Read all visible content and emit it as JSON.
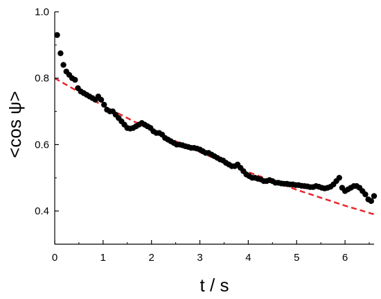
{
  "chart_data": {
    "type": "scatter",
    "title": "",
    "xlabel": "t / s",
    "ylabel": "<cos ψ>",
    "xlim": [
      0,
      6.6
    ],
    "ylim": [
      0.3,
      1.0
    ],
    "x_ticks": [
      0,
      1,
      2,
      3,
      4,
      5,
      6
    ],
    "x_tick_labels": [
      "0",
      "1",
      "2",
      "3",
      "4",
      "5",
      "6"
    ],
    "y_ticks": [
      0.4,
      0.6,
      0.8,
      1.0
    ],
    "y_tick_labels": [
      "0.4",
      "0.6",
      "0.8",
      "1.0"
    ],
    "grid": false,
    "legend": "none",
    "colors": {
      "points": "#000000",
      "fit": "#e8262b"
    },
    "series": [
      {
        "kind": "points",
        "x": [
          0.05,
          0.12,
          0.18,
          0.24,
          0.3,
          0.36,
          0.42,
          0.48,
          0.54,
          0.6,
          0.66,
          0.72,
          0.78,
          0.84,
          0.9,
          0.96,
          1.02,
          1.08,
          1.14,
          1.2,
          1.26,
          1.32,
          1.38,
          1.44,
          1.5,
          1.56,
          1.62,
          1.68,
          1.74,
          1.8,
          1.86,
          1.92,
          1.98,
          2.04,
          2.1,
          2.16,
          2.22,
          2.28,
          2.34,
          2.4,
          2.46,
          2.52,
          2.58,
          2.64,
          2.7,
          2.76,
          2.82,
          2.88,
          2.94,
          3.0,
          3.06,
          3.12,
          3.18,
          3.24,
          3.3,
          3.36,
          3.42,
          3.48,
          3.54,
          3.6,
          3.66,
          3.72,
          3.78,
          3.84,
          3.9,
          3.96,
          4.02,
          4.08,
          4.14,
          4.2,
          4.26,
          4.32,
          4.38,
          4.44,
          4.5,
          4.56,
          4.62,
          4.68,
          4.74,
          4.8,
          4.86,
          4.92,
          4.98,
          5.04,
          5.1,
          5.16,
          5.22,
          5.28,
          5.34,
          5.4,
          5.46,
          5.52,
          5.58,
          5.64,
          5.7,
          5.76,
          5.82,
          5.88,
          5.94,
          6.0,
          6.06,
          6.12,
          6.18,
          6.24,
          6.3,
          6.36,
          6.42,
          6.48,
          6.54,
          6.6
        ],
        "y": [
          0.93,
          0.875,
          0.84,
          0.82,
          0.81,
          0.8,
          0.795,
          0.77,
          0.76,
          0.755,
          0.75,
          0.745,
          0.74,
          0.735,
          0.745,
          0.735,
          0.72,
          0.705,
          0.7,
          0.7,
          0.69,
          0.68,
          0.67,
          0.66,
          0.65,
          0.648,
          0.65,
          0.655,
          0.66,
          0.665,
          0.66,
          0.655,
          0.65,
          0.64,
          0.635,
          0.635,
          0.63,
          0.62,
          0.615,
          0.61,
          0.605,
          0.6,
          0.6,
          0.598,
          0.595,
          0.593,
          0.59,
          0.59,
          0.588,
          0.585,
          0.58,
          0.575,
          0.575,
          0.57,
          0.565,
          0.56,
          0.555,
          0.552,
          0.545,
          0.54,
          0.535,
          0.535,
          0.54,
          0.53,
          0.52,
          0.51,
          0.505,
          0.5,
          0.5,
          0.497,
          0.495,
          0.49,
          0.49,
          0.493,
          0.49,
          0.485,
          0.485,
          0.483,
          0.482,
          0.482,
          0.48,
          0.48,
          0.478,
          0.478,
          0.476,
          0.475,
          0.474,
          0.472,
          0.472,
          0.475,
          0.473,
          0.47,
          0.468,
          0.47,
          0.473,
          0.48,
          0.49,
          0.5,
          0.47,
          0.46,
          0.465,
          0.47,
          0.475,
          0.475,
          0.47,
          0.46,
          0.45,
          0.435,
          0.43,
          0.445
        ]
      },
      {
        "kind": "fit-line",
        "style": "dashed",
        "x": [
          0,
          1,
          2,
          3,
          4,
          5,
          6,
          6.6
        ],
        "y": [
          0.8,
          0.717,
          0.643,
          0.577,
          0.517,
          0.464,
          0.416,
          0.39
        ]
      }
    ]
  }
}
